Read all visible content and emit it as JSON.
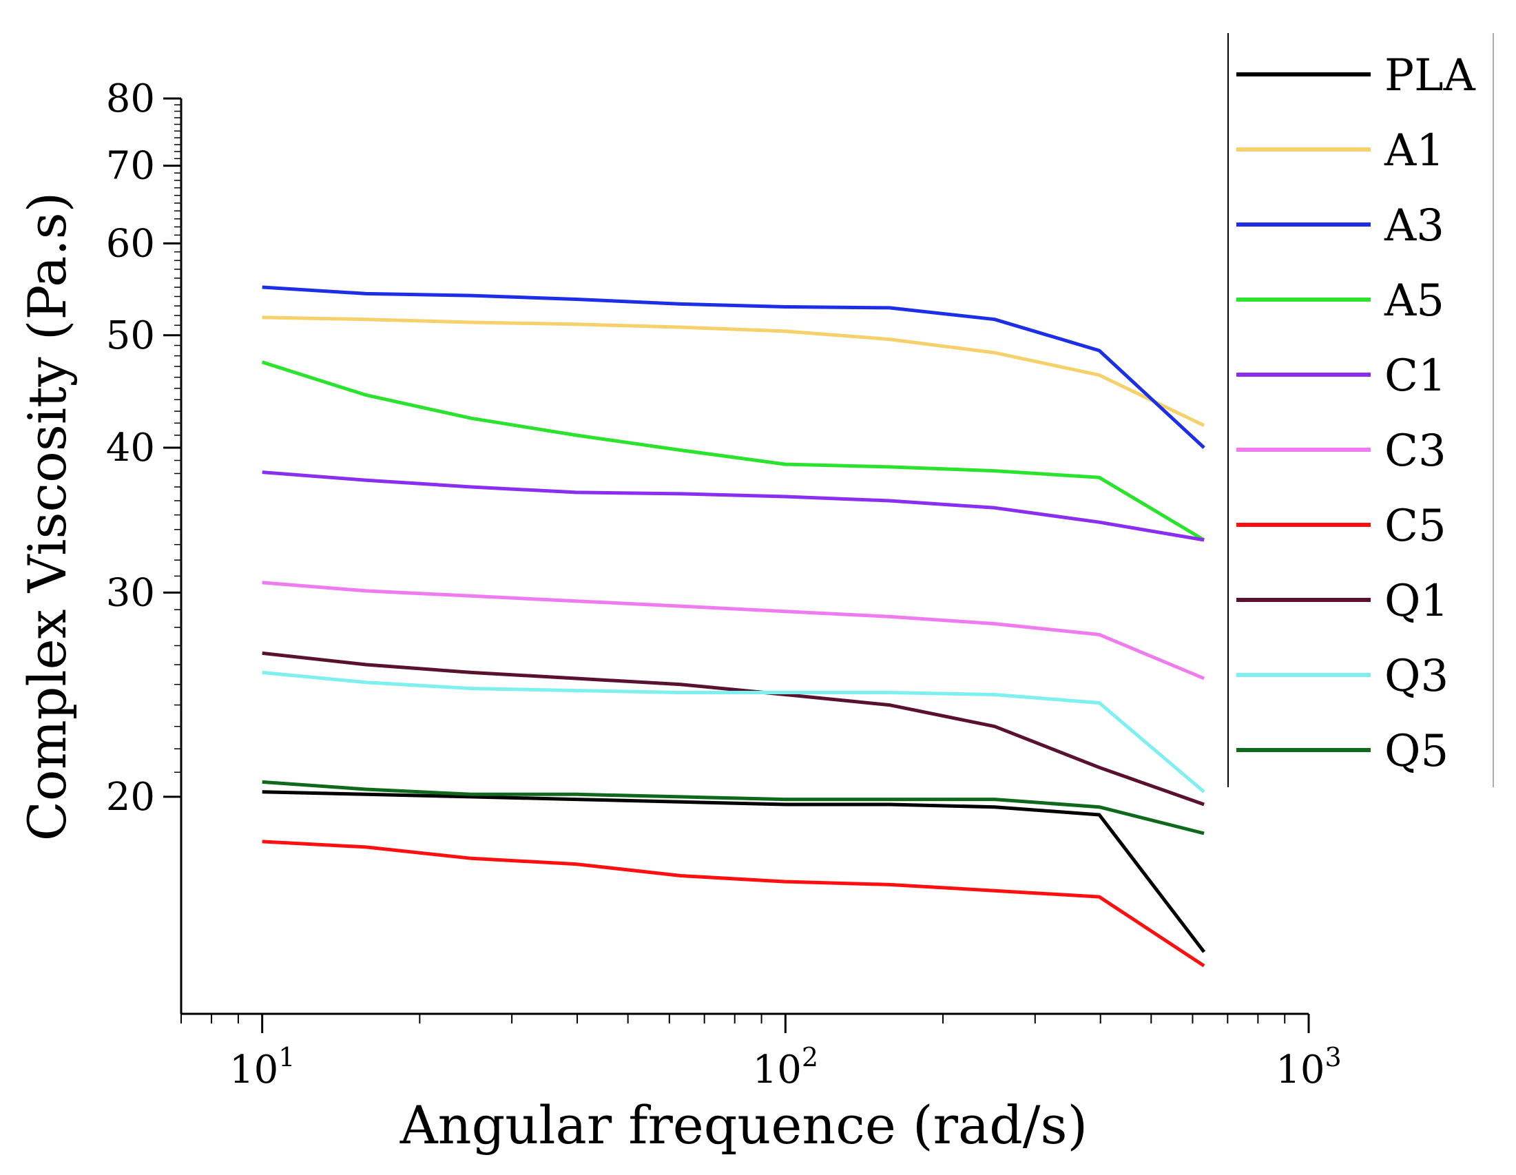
{
  "chart_data": {
    "type": "line",
    "title": "",
    "xlabel": "Angular frequence (rad/s)",
    "ylabel": "Complex Viscosity (Pa.s)",
    "xscale": "log",
    "yscale": "log",
    "xlim": [
      7,
      1000
    ],
    "ylim": [
      13,
      80
    ],
    "x_tick_labels": [
      {
        "value": 10,
        "base": "10",
        "exp": "1"
      },
      {
        "value": 100,
        "base": "10",
        "exp": "2"
      },
      {
        "value": 1000,
        "base": "10",
        "exp": "3"
      }
    ],
    "y_tick_labels": [
      {
        "value": 20,
        "label": "20"
      },
      {
        "value": 30,
        "label": "30"
      },
      {
        "value": 40,
        "label": "40"
      },
      {
        "value": 50,
        "label": "50"
      },
      {
        "value": 60,
        "label": "60"
      },
      {
        "value": 70,
        "label": "70"
      },
      {
        "value": 80,
        "label": "80"
      }
    ],
    "legend_position": "right",
    "x": [
      10,
      15.8,
      25.1,
      39.8,
      63.1,
      100,
      158,
      251,
      398,
      631
    ],
    "series": [
      {
        "name": "PLA",
        "color": "#000000",
        "values": [
          20.2,
          20.1,
          20.0,
          19.9,
          19.8,
          19.7,
          19.7,
          19.6,
          19.3,
          14.7
        ]
      },
      {
        "name": "A1",
        "color": "#f6d06a",
        "values": [
          51.8,
          51.6,
          51.3,
          51.1,
          50.8,
          50.4,
          49.6,
          48.3,
          46.2,
          41.8
        ]
      },
      {
        "name": "A3",
        "color": "#1c2ee6",
        "values": [
          55.0,
          54.3,
          54.1,
          53.7,
          53.2,
          52.9,
          52.8,
          51.6,
          48.5,
          40.0
        ]
      },
      {
        "name": "A5",
        "color": "#29e32d",
        "values": [
          47.4,
          44.4,
          42.4,
          41.0,
          39.8,
          38.7,
          38.5,
          38.2,
          37.7,
          33.3
        ]
      },
      {
        "name": "C1",
        "color": "#8a2ef0",
        "values": [
          38.1,
          37.5,
          37.0,
          36.6,
          36.5,
          36.3,
          36.0,
          35.5,
          34.5,
          33.3
        ]
      },
      {
        "name": "C3",
        "color": "#f07af0",
        "values": [
          30.6,
          30.1,
          29.8,
          29.5,
          29.2,
          28.9,
          28.6,
          28.2,
          27.6,
          25.3
        ]
      },
      {
        "name": "C5",
        "color": "#ff0f0f",
        "values": [
          18.3,
          18.1,
          17.7,
          17.5,
          17.1,
          16.9,
          16.8,
          16.6,
          16.4,
          14.3
        ]
      },
      {
        "name": "Q1",
        "color": "#5a1130",
        "values": [
          26.6,
          26.0,
          25.6,
          25.3,
          25.0,
          24.5,
          24.0,
          23.0,
          21.2,
          19.7
        ]
      },
      {
        "name": "Q3",
        "color": "#7ff0f0",
        "values": [
          25.6,
          25.1,
          24.8,
          24.7,
          24.6,
          24.6,
          24.6,
          24.5,
          24.1,
          20.2
        ]
      },
      {
        "name": "Q5",
        "color": "#0e6a1a",
        "values": [
          20.6,
          20.3,
          20.1,
          20.1,
          20.0,
          19.9,
          19.9,
          19.9,
          19.6,
          18.6
        ]
      }
    ]
  }
}
